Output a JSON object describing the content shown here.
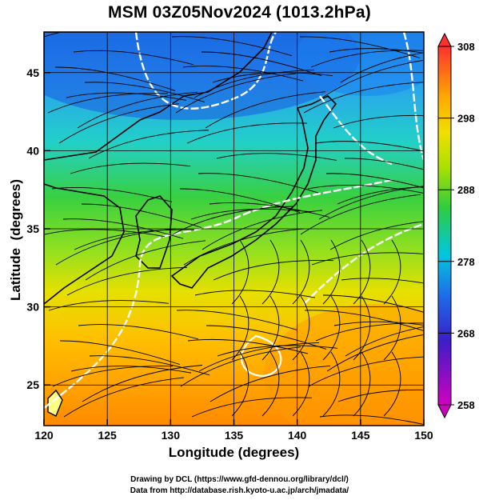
{
  "title": "MSM 03Z05Nov2024 (1013.2hPa)",
  "map": {
    "xlabel": "Longitude (degrees)",
    "ylabel": "Latitude  (degrees)",
    "lon_range": [
      120,
      150
    ],
    "lat_range": [
      22.4,
      47.6
    ],
    "lon_ticks": [
      "120",
      "125",
      "130",
      "135",
      "140",
      "145",
      "150"
    ],
    "lat_ticks": [
      "25",
      "30",
      "35",
      "40",
      "45"
    ],
    "grid": true
  },
  "colorbar": {
    "min": 258,
    "max": 308,
    "labels": [
      "308",
      "298",
      "288",
      "278",
      "268",
      "258"
    ],
    "colors": [
      "#cc00cc",
      "#2a2ad0",
      "#1e90ff",
      "#00d0e0",
      "#2ecc40",
      "#a8e000",
      "#f0e000",
      "#ffaa00",
      "#ff5a1e",
      "#ff3030"
    ]
  },
  "credits": {
    "line1": "Drawing by DCL (https://www.gfd-dennou.org/library/dcl/)",
    "line2": "Data from http://database.rish.kyoto-u.ac.jp/arch/jmadata/"
  }
}
